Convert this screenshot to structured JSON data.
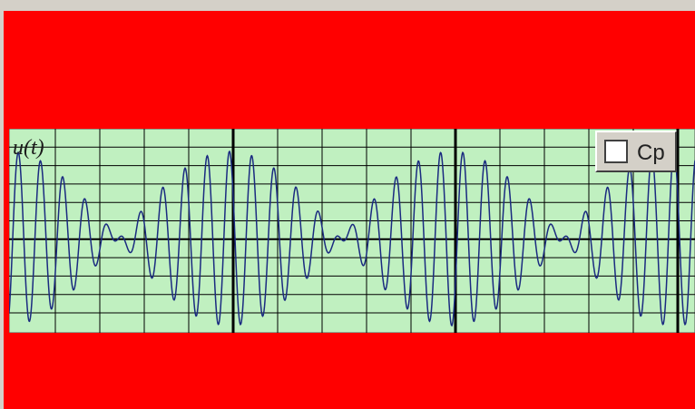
{
  "plot": {
    "label": "u(t)"
  },
  "checkbox": {
    "label": "Cp"
  }
}
